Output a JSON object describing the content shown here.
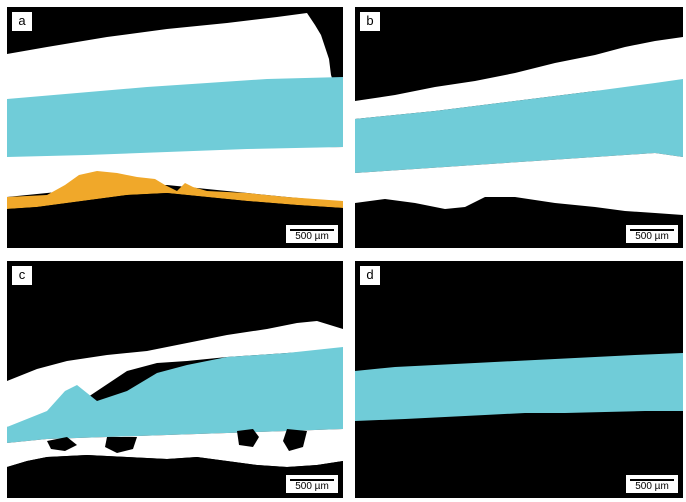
{
  "colors": {
    "background": "#000000",
    "white_phase": "#ffffff",
    "cyan_phase": "#70ccd8",
    "orange_phase": "#f0a82a"
  },
  "panels": [
    {
      "label": "a",
      "scale_text": "500 µm"
    },
    {
      "label": "b",
      "scale_text": "500 µm"
    },
    {
      "label": "c",
      "scale_text": "500 µm"
    },
    {
      "label": "d",
      "scale_text": "500 µm"
    }
  ]
}
